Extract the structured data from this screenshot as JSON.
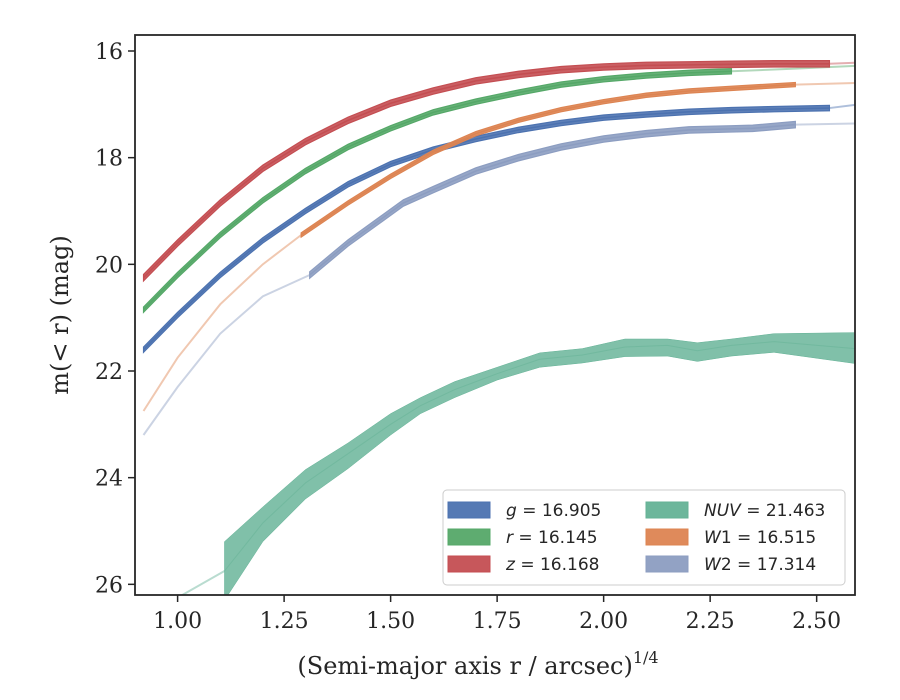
{
  "chart_data": {
    "type": "line",
    "xlabel": "(Semi-major axis r / arcsec)",
    "xlabel_exponent": "1/4",
    "ylabel": "m(< r) (mag)",
    "xlim": [
      0.9,
      2.59
    ],
    "ylim": [
      26.2,
      15.7
    ],
    "y_inverted": true,
    "grid": false,
    "legend_position": "lower-right",
    "legend_columns": 2,
    "x_ticks": [
      1.0,
      1.25,
      1.5,
      1.75,
      2.0,
      2.25,
      2.5
    ],
    "x_tick_labels": [
      "1.00",
      "1.25",
      "1.50",
      "1.75",
      "2.00",
      "2.25",
      "2.50"
    ],
    "y_ticks": [
      16,
      18,
      20,
      22,
      24,
      26
    ],
    "y_tick_labels": [
      "16",
      "18",
      "20",
      "22",
      "24",
      "26"
    ],
    "series": [
      {
        "name": "g = 16.905",
        "color": "#4c72b0",
        "x": [
          0.92,
          1.0,
          1.1,
          1.2,
          1.3,
          1.4,
          1.5,
          1.6,
          1.7,
          1.8,
          1.9,
          2.0,
          2.1,
          2.2,
          2.3,
          2.4,
          2.53
        ],
        "y": [
          21.6,
          20.95,
          20.2,
          19.55,
          19.0,
          18.5,
          18.12,
          17.85,
          17.65,
          17.48,
          17.35,
          17.25,
          17.19,
          17.14,
          17.11,
          17.09,
          17.07
        ],
        "band": 0.05,
        "ext_x": [
          2.53,
          2.59
        ],
        "ext_y": [
          17.07,
          17.01
        ]
      },
      {
        "name": "r = 16.145",
        "color": "#55a868",
        "x": [
          0.92,
          1.0,
          1.1,
          1.2,
          1.3,
          1.4,
          1.5,
          1.6,
          1.7,
          1.8,
          1.9,
          2.0,
          2.1,
          2.2,
          2.3
        ],
        "y": [
          20.85,
          20.2,
          19.45,
          18.8,
          18.25,
          17.8,
          17.45,
          17.15,
          16.95,
          16.78,
          16.63,
          16.53,
          16.46,
          16.41,
          16.38
        ],
        "band": 0.05,
        "ext_x": [
          2.3,
          2.45,
          2.59
        ],
        "ext_y": [
          16.38,
          16.33,
          16.28
        ]
      },
      {
        "name": "z = 16.168",
        "color": "#c44e52",
        "x": [
          0.92,
          1.0,
          1.1,
          1.2,
          1.3,
          1.4,
          1.5,
          1.6,
          1.7,
          1.8,
          1.9,
          2.0,
          2.1,
          2.2,
          2.3,
          2.4,
          2.53
        ],
        "y": [
          20.25,
          19.6,
          18.85,
          18.2,
          17.7,
          17.3,
          16.98,
          16.75,
          16.56,
          16.44,
          16.35,
          16.3,
          16.27,
          16.26,
          16.25,
          16.24,
          16.24
        ],
        "band": 0.06,
        "ext_x": [
          2.53,
          2.59
        ],
        "ext_y": [
          16.24,
          16.22
        ]
      },
      {
        "name": "NUV = 21.463",
        "color": "#64b296",
        "x": [
          1.11,
          1.2,
          1.3,
          1.4,
          1.5,
          1.57,
          1.65,
          1.75,
          1.85,
          1.95,
          2.05,
          2.15,
          2.22,
          2.3,
          2.4,
          2.59
        ],
        "y": [
          25.75,
          24.85,
          24.1,
          23.55,
          23.0,
          22.65,
          22.35,
          22.05,
          21.78,
          21.7,
          21.55,
          21.52,
          21.62,
          21.52,
          21.45,
          21.58
        ],
        "band_lower": [
          0.55,
          0.35,
          0.3,
          0.28,
          0.2,
          0.15,
          0.15,
          0.12,
          0.15,
          0.15,
          0.18,
          0.2,
          0.2,
          0.2,
          0.2,
          0.28
        ],
        "band_upper": [
          0.55,
          0.3,
          0.25,
          0.2,
          0.2,
          0.15,
          0.15,
          0.12,
          0.12,
          0.12,
          0.15,
          0.12,
          0.15,
          0.12,
          0.15,
          0.3
        ],
        "ext_x": [
          0.92,
          1.0,
          1.11
        ],
        "ext_y": [
          26.6,
          26.25,
          25.75
        ]
      },
      {
        "name": "W1 = 16.515",
        "color": "#dd8452",
        "x": [
          1.29,
          1.4,
          1.5,
          1.6,
          1.7,
          1.8,
          1.9,
          2.0,
          2.1,
          2.2,
          2.3,
          2.45
        ],
        "y": [
          19.45,
          18.85,
          18.35,
          17.9,
          17.55,
          17.3,
          17.1,
          16.95,
          16.83,
          16.75,
          16.7,
          16.63
        ],
        "band": 0.04,
        "ext_x": [
          0.92,
          1.0,
          1.1,
          1.2,
          1.29
        ],
        "ext_y": [
          22.75,
          21.75,
          20.75,
          20.0,
          19.45
        ],
        "ext2_x": [
          2.45,
          2.59
        ],
        "ext2_y": [
          16.63,
          16.6
        ]
      },
      {
        "name": "W2 = 17.314",
        "color": "#8c9dc1",
        "x": [
          1.31,
          1.4,
          1.53,
          1.6,
          1.7,
          1.8,
          1.9,
          2.0,
          2.1,
          2.2,
          2.3,
          2.35,
          2.45
        ],
        "y": [
          20.2,
          19.6,
          18.85,
          18.6,
          18.25,
          18.0,
          17.8,
          17.65,
          17.55,
          17.48,
          17.46,
          17.45,
          17.38
        ],
        "band": 0.06,
        "ext_x": [
          0.92,
          1.0,
          1.1,
          1.2,
          1.31
        ],
        "ext_y": [
          23.2,
          22.3,
          21.3,
          20.6,
          20.2
        ],
        "ext2_x": [
          2.45,
          2.59
        ],
        "ext2_y": [
          17.38,
          17.36
        ]
      }
    ],
    "legend_left": [
      {
        "name": "g = 16.905",
        "color": "#4c72b0",
        "italic": "g",
        "value": " = 16.905"
      },
      {
        "name": "r = 16.145",
        "color": "#55a868",
        "italic": "r",
        "value": " = 16.145"
      },
      {
        "name": "z = 16.168",
        "color": "#c44e52",
        "italic": "z",
        "value": " = 16.168"
      }
    ],
    "legend_right": [
      {
        "name": "NUV = 21.463",
        "color": "#64b296",
        "italic": "NUV",
        "value": " = 21.463"
      },
      {
        "name": "W1 = 16.515",
        "color": "#dd8452",
        "italic": "W",
        "sub": "1",
        "value": " = 16.515"
      },
      {
        "name": "W2 = 17.314",
        "color": "#8c9dc1",
        "italic": "W",
        "sub": "2",
        "value": " = 17.314"
      }
    ]
  }
}
